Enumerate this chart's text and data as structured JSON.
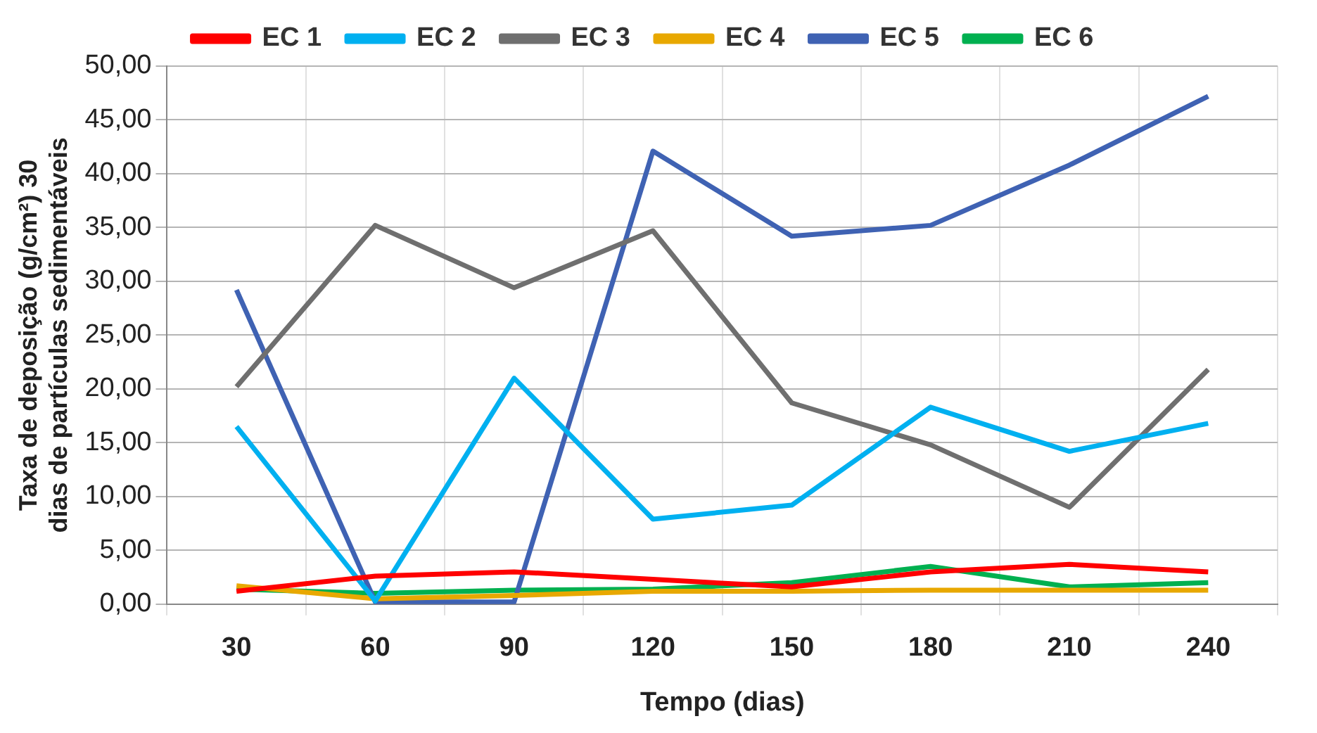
{
  "chart_data": {
    "type": "line",
    "xlabel": "Tempo (dias)",
    "ylabel": "Taxa de deposição (g/cm²) 30 dias de partículas sedimentáveis",
    "categories": [
      "30",
      "60",
      "90",
      "120",
      "150",
      "180",
      "210",
      "240"
    ],
    "series": [
      {
        "name": "EC 1",
        "color": "#ff0000",
        "values": [
          1.2,
          2.6,
          3.0,
          2.3,
          1.6,
          3.0,
          3.7,
          3.0
        ]
      },
      {
        "name": "EC 2",
        "color": "#00b0f0",
        "values": [
          16.5,
          0.3,
          21.0,
          7.9,
          9.2,
          18.3,
          14.2,
          16.8
        ]
      },
      {
        "name": "EC 3",
        "color": "#6f6f6f",
        "values": [
          20.2,
          35.2,
          29.4,
          34.7,
          18.7,
          14.8,
          9.0,
          21.8
        ]
      },
      {
        "name": "EC 4",
        "color": "#e8a800",
        "values": [
          1.7,
          0.5,
          0.8,
          1.2,
          1.2,
          1.3,
          1.3,
          1.3
        ]
      },
      {
        "name": "EC 5",
        "color": "#3f62b3",
        "values": [
          29.2,
          0.2,
          0.2,
          42.1,
          34.2,
          35.2,
          40.8,
          47.2
        ]
      },
      {
        "name": "EC 6",
        "color": "#00b050",
        "values": [
          1.4,
          1.0,
          1.3,
          1.4,
          2.0,
          3.5,
          1.6,
          2.0
        ]
      }
    ],
    "ylim": [
      0,
      50
    ],
    "yticks": [
      {
        "value": 0,
        "label": "0,00"
      },
      {
        "value": 5,
        "label": "5,00"
      },
      {
        "value": 10,
        "label": "10,00"
      },
      {
        "value": 15,
        "label": "15,00"
      },
      {
        "value": 20,
        "label": "20,00"
      },
      {
        "value": 25,
        "label": "25,00"
      },
      {
        "value": 30,
        "label": "30,00"
      },
      {
        "value": 35,
        "label": "35,00"
      },
      {
        "value": 40,
        "label": "40,00"
      },
      {
        "value": 45,
        "label": "45,00"
      },
      {
        "value": 50,
        "label": "50,00"
      }
    ],
    "grid": true,
    "legend": "top",
    "marker": "none",
    "line_style": "solid"
  }
}
